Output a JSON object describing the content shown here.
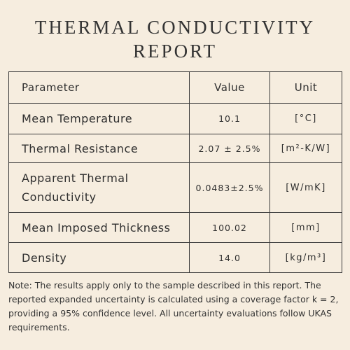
{
  "header": {
    "title_lines": [
      "THERMAL CONDUCTIVITY",
      "REPORT"
    ]
  },
  "table": {
    "columns": [
      "Parameter",
      "Value",
      "Unit"
    ],
    "rows": [
      [
        "Mean Temperature",
        "10.1",
        "[°C]"
      ],
      [
        "Thermal Resistance",
        "2.07 ± 2.5%",
        "[m²-K/W]"
      ],
      [
        "Apparent Thermal Conductivity",
        "0.0483±2.5%",
        "[W/mK]"
      ],
      [
        "Mean Imposed Thickness",
        "100.02",
        "[mm]"
      ],
      [
        "Density",
        "14.0",
        "[kg/m³]"
      ]
    ]
  },
  "note": "Note: The results apply only to the sample described in this report. The reported expanded uncertainty is calculated using a coverage factor k = 2, providing a 95% confidence level. All uncertainty evaluations follow UKAS requirements."
}
